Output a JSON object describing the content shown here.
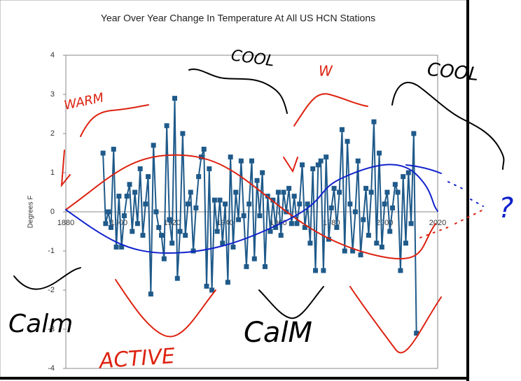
{
  "chart_data": {
    "type": "line",
    "title": "Year Over Year Change In Temperature At All US HCN Stations",
    "y_label": "Degrees F",
    "x": [
      1894,
      1895,
      1896,
      1897,
      1898,
      1899,
      1900,
      1901,
      1902,
      1903,
      1904,
      1905,
      1906,
      1907,
      1908,
      1909,
      1910,
      1911,
      1912,
      1913,
      1914,
      1915,
      1916,
      1917,
      1918,
      1919,
      1920,
      1921,
      1922,
      1923,
      1924,
      1925,
      1926,
      1927,
      1928,
      1929,
      1930,
      1931,
      1932,
      1933,
      1934,
      1935,
      1936,
      1937,
      1938,
      1939,
      1940,
      1941,
      1942,
      1943,
      1944,
      1945,
      1946,
      1947,
      1948,
      1949,
      1950,
      1951,
      1952,
      1953,
      1954,
      1955,
      1956,
      1957,
      1958,
      1959,
      1960,
      1961,
      1962,
      1963,
      1964,
      1965,
      1966,
      1967,
      1968,
      1969,
      1970,
      1971,
      1972,
      1973,
      1974,
      1975,
      1976,
      1977,
      1978,
      1979,
      1980,
      1981,
      1982,
      1983,
      1984,
      1985,
      1986,
      1987,
      1988,
      1989,
      1990,
      1991,
      1992,
      1993,
      1994,
      1995,
      1996,
      1997,
      1998,
      1999,
      2000,
      2001,
      2002,
      2003,
      2004,
      2005,
      2006,
      2007,
      2008,
      2009,
      2010,
      2011,
      2012
    ],
    "series": [
      {
        "color": "#1f5a8a",
        "values": [
          1.5,
          -0.3,
          0.0,
          -0.4,
          1.6,
          -0.9,
          0.4,
          -0.9,
          -0.1,
          0.4,
          0.7,
          -0.5,
          0.5,
          -0.3,
          1.1,
          -0.6,
          0.2,
          0.9,
          -2.1,
          1.7,
          0.0,
          -0.4,
          -0.6,
          -1.2,
          2.2,
          -0.2,
          -0.8,
          2.9,
          -1.7,
          -0.5,
          2.0,
          -0.6,
          0.2,
          0.5,
          -1.0,
          0.1,
          0.9,
          1.4,
          1.6,
          -1.9,
          1.1,
          -2.0,
          0.3,
          -0.5,
          0.3,
          -0.8,
          0.2,
          -1.8,
          1.4,
          -0.9,
          0.5,
          -0.2,
          1.3,
          -0.1,
          -1.4,
          0.2,
          1.3,
          -1.2,
          0.8,
          -0.1,
          1.0,
          -1.4,
          0.4,
          -0.5,
          0.3,
          -0.4,
          0.5,
          -0.6,
          0.5,
          0.0,
          0.6,
          -0.3,
          0.4,
          -0.3,
          0.2,
          1.2,
          -0.4,
          0.2,
          -0.8,
          1.1,
          -1.5,
          1.2,
          1.3,
          -1.5,
          1.4,
          -0.7,
          0.1,
          0.6,
          -0.4,
          0.5,
          2.1,
          -1.0,
          1.8,
          0.2,
          -1.0,
          0.0,
          1.3,
          -1.1,
          -0.2,
          0.6,
          -0.6,
          0.5,
          2.3,
          -0.8,
          1.5,
          -0.9,
          0.2,
          0.5,
          -0.5,
          0.1,
          0.7,
          0.5,
          -1.5,
          0.9,
          -0.8,
          1.0,
          -0.3,
          2.0,
          -3.1
        ]
      }
    ],
    "xlim": [
      1880,
      2020
    ],
    "xticks": [
      1880,
      1900,
      1920,
      1940,
      1960,
      1980,
      2000,
      2020
    ],
    "ylim": [
      -4,
      4
    ],
    "yticks": [
      -4,
      -3,
      -2,
      -1,
      0,
      1,
      2,
      3,
      4
    ],
    "annotations": [
      "WARM",
      "COOL",
      "W",
      "COOL",
      "Calm",
      "CalM",
      "ACTIVE",
      "?"
    ]
  }
}
